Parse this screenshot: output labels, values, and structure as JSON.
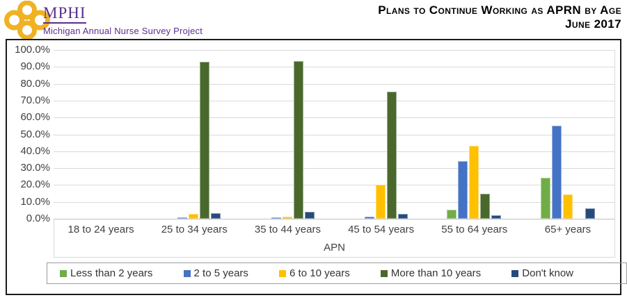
{
  "header": {
    "logo": {
      "org": "MPHI",
      "subtitle": "Michigan Annual Nurse Survey Project"
    },
    "title_line1": "Plans to Continue Working as APRN by Age",
    "title_line2": "June 2017"
  },
  "chart_data": {
    "type": "bar",
    "title": "Plans to Continue Working as APRN by Age",
    "subtitle": "June 2017",
    "xlabel": "APN",
    "ylabel": "",
    "ylim": [
      0,
      100
    ],
    "ytick_step": 10,
    "yticks": [
      "100.0%",
      "90.0%",
      "80.0%",
      "70.0%",
      "60.0%",
      "50.0%",
      "40.0%",
      "30.0%",
      "20.0%",
      "10.0%",
      "0.0%"
    ],
    "grid": true,
    "legend_position": "bottom",
    "categories": [
      "18 to 24 years",
      "25 to 34 years",
      "35 to 44 years",
      "45 to 54 years",
      "55 to 64 years",
      "65+ years"
    ],
    "series": [
      {
        "name": "Less than 2 years",
        "color": "#70AD47",
        "values": [
          0,
          0,
          0,
          0,
          5.2,
          24.1
        ]
      },
      {
        "name": "2 to 5 years",
        "color": "#4472C4",
        "values": [
          0,
          1.0,
          0.9,
          1.2,
          34.0,
          55.0
        ]
      },
      {
        "name": "6 to 10 years",
        "color": "#FFC000",
        "values": [
          0,
          3.1,
          1.3,
          20.3,
          43.3,
          14.5
        ]
      },
      {
        "name": "More than 10 years",
        "color": "#4A682C",
        "values": [
          0,
          93.0,
          93.5,
          75.5,
          15.0,
          0
        ]
      },
      {
        "name": "Don't know",
        "color": "#264A7C",
        "values": [
          0,
          3.2,
          4.1,
          2.8,
          2.2,
          6.1
        ]
      }
    ],
    "colors": {
      "gridline": "#D9D9D9",
      "axis": "#BFBFBF",
      "logo_gold": "#F0B223",
      "logo_purple": "#5B2D8E"
    }
  }
}
